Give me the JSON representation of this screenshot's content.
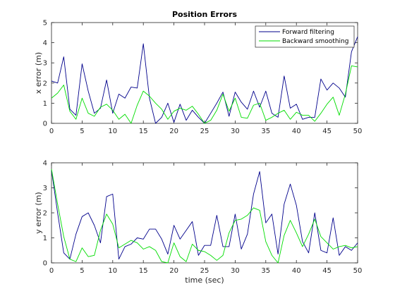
{
  "chart_data": [
    {
      "type": "line",
      "title": "Position Errors",
      "xlabel": "",
      "ylabel": "x error (m)",
      "xlim": [
        0,
        50
      ],
      "ylim": [
        0,
        5
      ],
      "xticks": [
        0,
        5,
        10,
        15,
        20,
        25,
        30,
        35,
        40,
        45,
        50
      ],
      "yticks": [
        0,
        1,
        2,
        3,
        4,
        5
      ],
      "grid": false,
      "legend_position": "top-right",
      "x": [
        0,
        1,
        2,
        3,
        4,
        5,
        6,
        7,
        8,
        9,
        10,
        11,
        12,
        13,
        14,
        15,
        16,
        17,
        18,
        19,
        20,
        21,
        22,
        23,
        24,
        25,
        26,
        27,
        28,
        29,
        30,
        31,
        32,
        33,
        34,
        35,
        36,
        37,
        38,
        39,
        40,
        41,
        42,
        43,
        44,
        45,
        46,
        47,
        48,
        49,
        50
      ],
      "series": [
        {
          "name": "Forward filtering",
          "color": "#00008b",
          "values": [
            2.1,
            2.0,
            3.3,
            0.7,
            0.4,
            2.95,
            1.6,
            0.5,
            0.75,
            2.15,
            0.5,
            1.45,
            1.25,
            1.8,
            1.75,
            3.95,
            1.25,
            0.0,
            0.3,
            1.0,
            0.05,
            0.95,
            0.15,
            0.65,
            0.3,
            0.0,
            0.5,
            1.0,
            1.55,
            0.35,
            1.55,
            1.05,
            0.7,
            1.6,
            0.8,
            1.6,
            0.5,
            0.3,
            2.35,
            0.75,
            0.95,
            0.2,
            0.3,
            0.3,
            2.2,
            1.65,
            2.0,
            1.75,
            1.3,
            3.55,
            4.3
          ]
        },
        {
          "name": "Backward smoothing",
          "color": "#00dd00",
          "values": [
            1.25,
            1.5,
            1.9,
            0.6,
            0.2,
            1.25,
            0.5,
            0.35,
            0.8,
            0.95,
            0.65,
            0.2,
            0.45,
            0.0,
            0.9,
            1.6,
            1.35,
            1.0,
            0.7,
            0.2,
            0.6,
            0.75,
            0.65,
            0.85,
            0.45,
            0.0,
            0.15,
            0.65,
            1.45,
            0.6,
            1.25,
            0.3,
            0.25,
            0.9,
            1.0,
            0.15,
            0.3,
            0.5,
            0.65,
            0.2,
            0.55,
            0.4,
            0.4,
            0.1,
            0.5,
            0.95,
            1.3,
            0.4,
            1.45,
            2.85,
            2.8
          ]
        }
      ]
    },
    {
      "type": "line",
      "title": "",
      "xlabel": "time (sec)",
      "ylabel": "y error (m)",
      "xlim": [
        0,
        50
      ],
      "ylim": [
        0,
        4
      ],
      "xticks": [
        0,
        5,
        10,
        15,
        20,
        25,
        30,
        35,
        40,
        45,
        50
      ],
      "yticks": [
        0,
        1,
        2,
        3,
        4
      ],
      "grid": false,
      "x": [
        0,
        1,
        2,
        3,
        4,
        5,
        6,
        7,
        8,
        9,
        10,
        11,
        12,
        13,
        14,
        15,
        16,
        17,
        18,
        19,
        20,
        21,
        22,
        23,
        24,
        25,
        26,
        27,
        28,
        29,
        30,
        31,
        32,
        33,
        34,
        35,
        36,
        37,
        38,
        39,
        40,
        41,
        42,
        43,
        44,
        45,
        46,
        47,
        48,
        49,
        50
      ],
      "series": [
        {
          "name": "Forward filtering",
          "color": "#00008b",
          "values": [
            3.7,
            2.0,
            0.4,
            0.15,
            1.15,
            1.85,
            2.0,
            1.5,
            0.8,
            2.65,
            2.75,
            0.15,
            0.65,
            0.75,
            1.0,
            0.95,
            1.35,
            1.35,
            0.95,
            0.35,
            1.5,
            0.95,
            1.3,
            1.65,
            0.3,
            0.7,
            0.7,
            1.9,
            0.65,
            0.65,
            1.95,
            0.55,
            1.15,
            2.75,
            3.65,
            1.6,
            1.95,
            0.35,
            2.35,
            3.15,
            2.3,
            0.85,
            0.4,
            2.0,
            0.5,
            0.4,
            1.8,
            0.3,
            0.65,
            0.5,
            0.8
          ]
        },
        {
          "name": "Backward smoothing",
          "color": "#00dd00",
          "values": [
            3.75,
            2.35,
            1.05,
            0.15,
            0.05,
            0.6,
            0.25,
            0.3,
            1.3,
            1.95,
            1.55,
            0.6,
            0.75,
            0.9,
            0.8,
            0.55,
            0.65,
            0.5,
            0.05,
            0.0,
            0.8,
            0.25,
            0.05,
            0.75,
            0.5,
            0.45,
            0.3,
            0.1,
            0.3,
            1.2,
            1.7,
            1.75,
            1.9,
            2.2,
            2.1,
            0.85,
            0.3,
            0.0,
            1.1,
            1.7,
            1.2,
            0.65,
            1.15,
            1.75,
            1.05,
            0.8,
            0.55,
            0.65,
            0.7,
            0.6,
            0.65
          ]
        }
      ]
    }
  ]
}
